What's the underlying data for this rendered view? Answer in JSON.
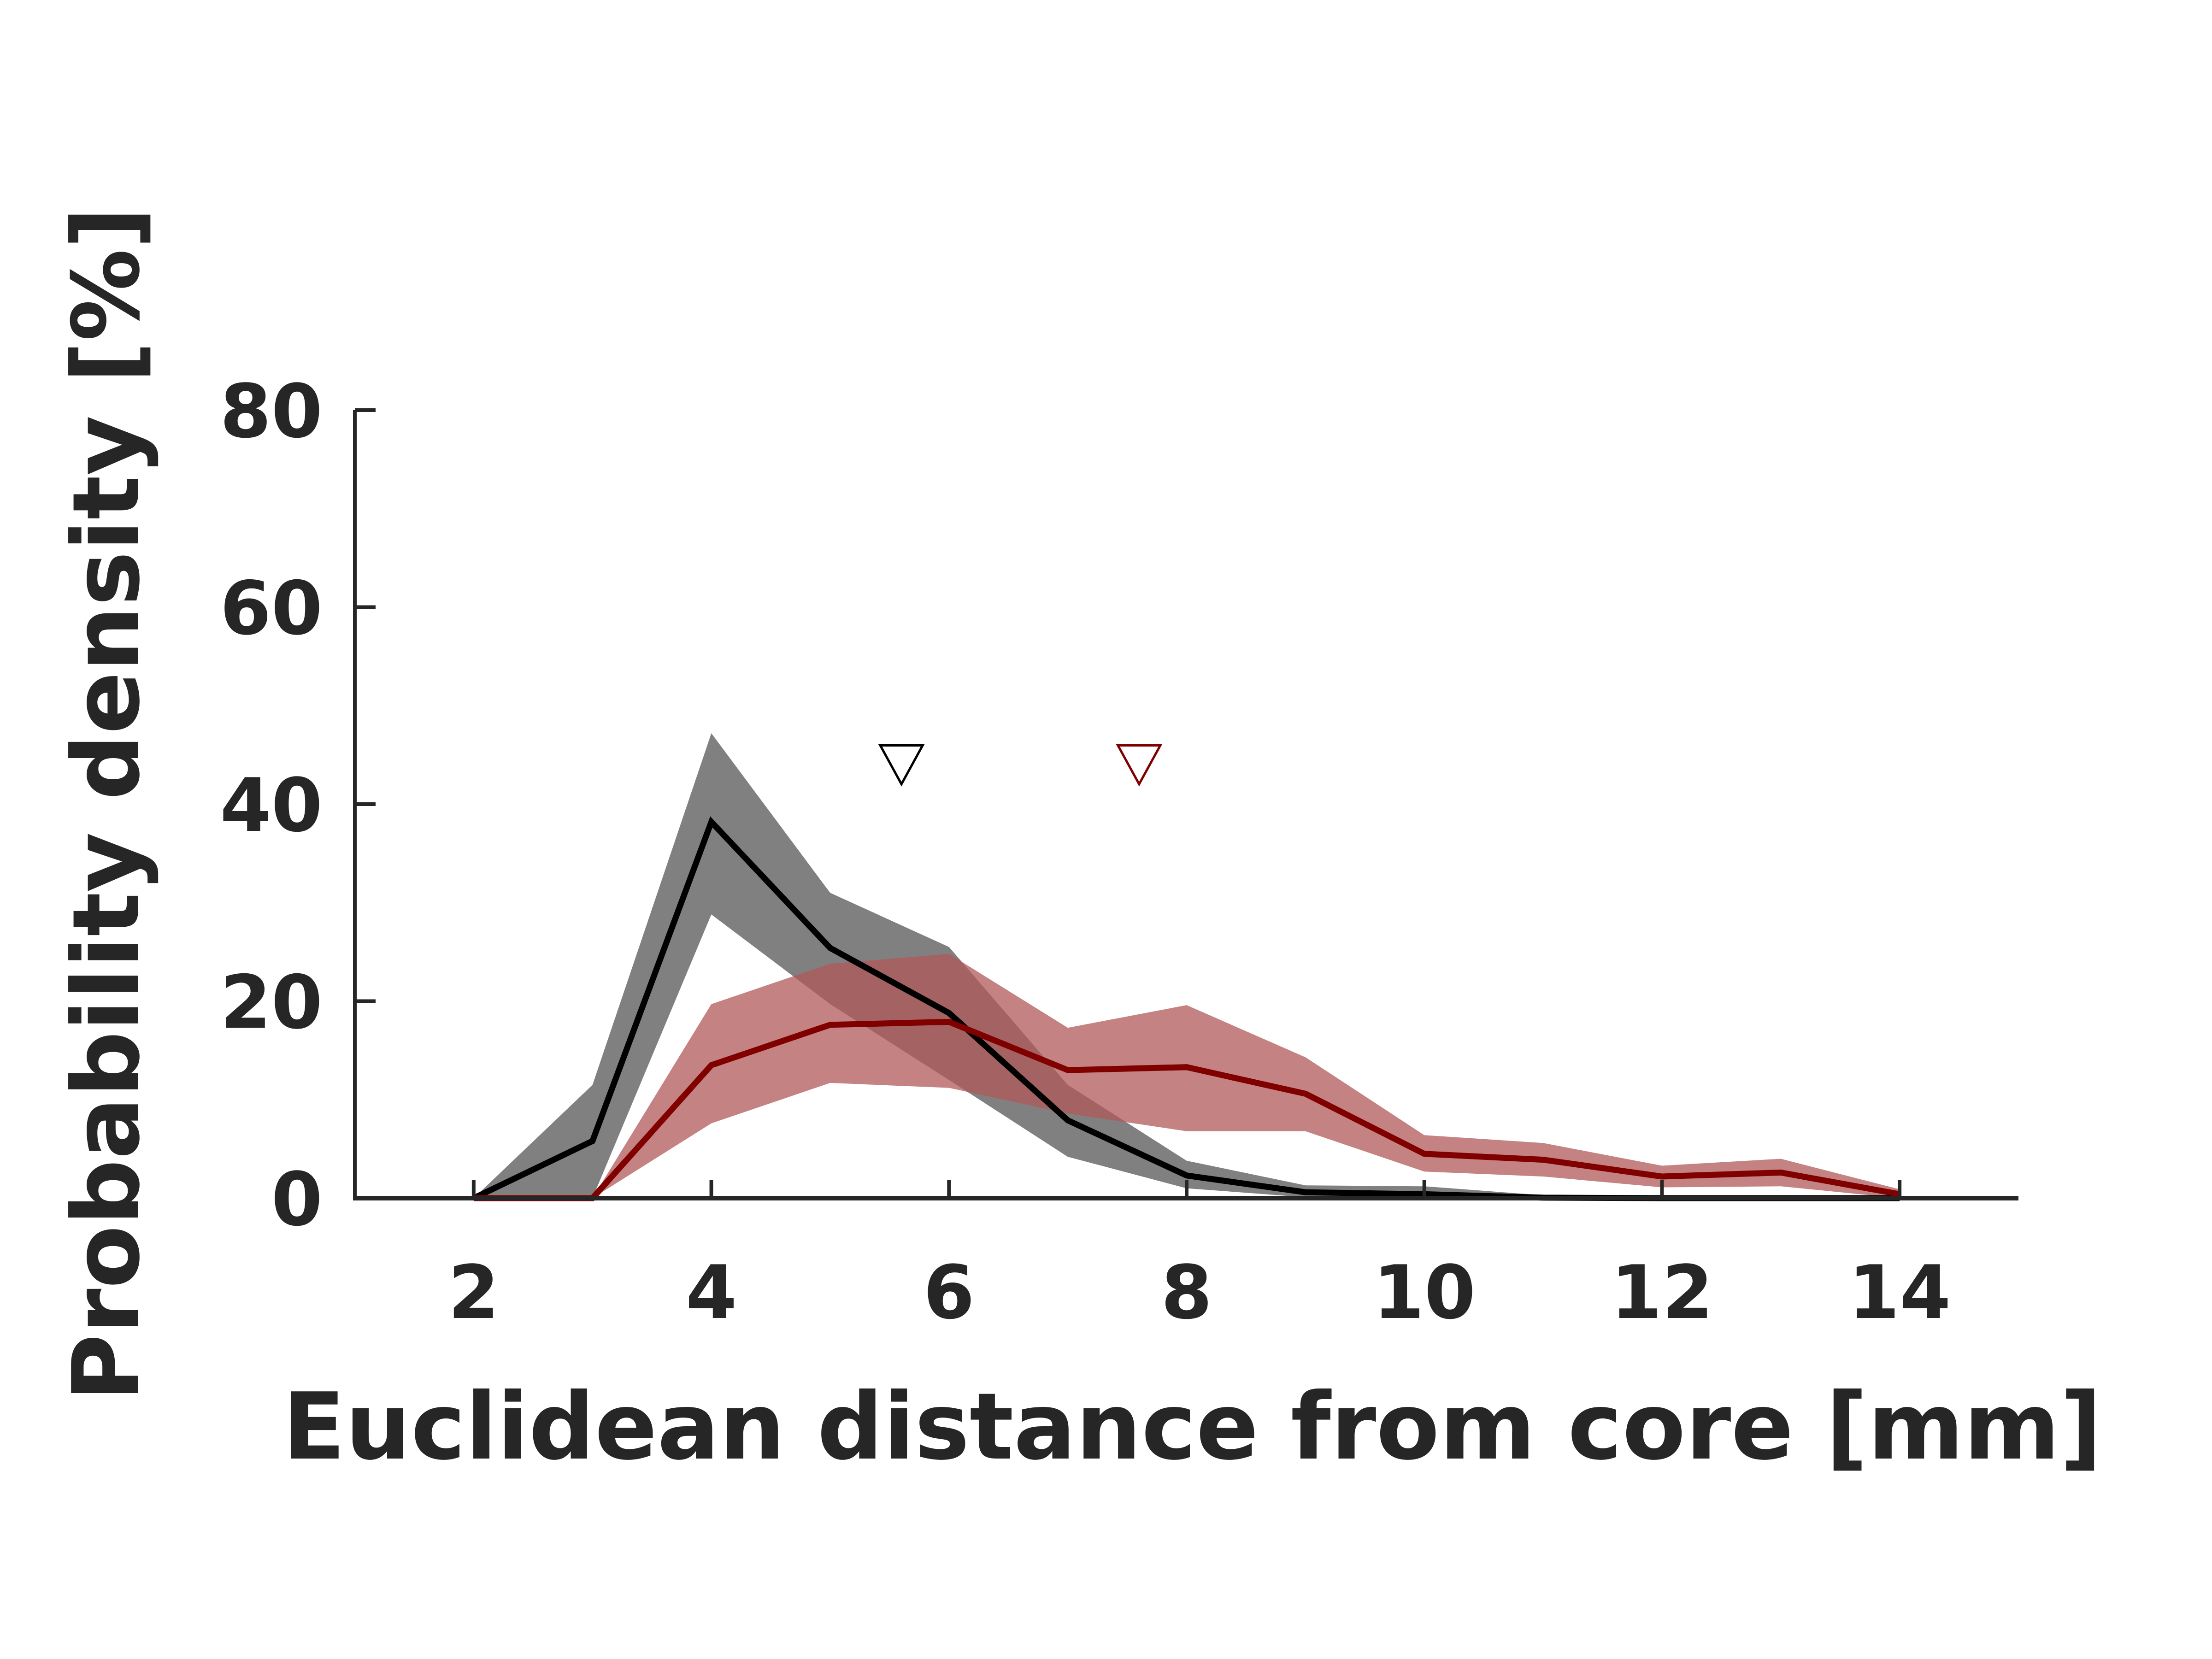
{
  "chart_data": {
    "type": "line",
    "title": "",
    "xlabel": "Euclidean distance from core [mm]",
    "ylabel": "Probability density [%]",
    "xlim": [
      1,
      15
    ],
    "ylim": [
      0,
      80
    ],
    "xticks": [
      2,
      4,
      6,
      8,
      10,
      12,
      14
    ],
    "yticks": [
      0,
      20,
      40,
      60,
      80
    ],
    "grid": false,
    "legend": "none",
    "series": [
      {
        "color": "#000000",
        "band_color": "#808080",
        "x": [
          2,
          3,
          4,
          5,
          6,
          7,
          8,
          9,
          10,
          11,
          12,
          13,
          14
        ],
        "values": [
          0,
          5.8,
          38.2,
          25.4,
          18.8,
          7.9,
          2.3,
          0.6,
          0.4,
          0.05,
          0,
          0,
          0
        ],
        "upper": [
          0,
          11.5,
          47.2,
          31.0,
          25.5,
          11.5,
          3.8,
          1.3,
          1.2,
          0.3,
          0,
          0,
          0
        ],
        "lower": [
          0,
          0,
          28.8,
          19.7,
          12.0,
          4.2,
          1.0,
          0.1,
          0,
          0,
          0,
          0,
          0
        ],
        "marker_x": 5.6
      },
      {
        "color": "#800000",
        "band_color": "#b25858",
        "x": [
          2,
          3,
          4,
          5,
          6,
          7,
          8,
          9,
          10,
          11,
          12,
          13,
          14
        ],
        "values": [
          0,
          0,
          13.5,
          17.6,
          17.9,
          13.0,
          13.3,
          10.6,
          4.5,
          3.9,
          2.2,
          2.6,
          0.4
        ],
        "upper": [
          0,
          0,
          19.7,
          23.8,
          24.8,
          17.3,
          19.6,
          14.3,
          6.4,
          5.6,
          3.3,
          4.0,
          0.9
        ],
        "lower": [
          0,
          0,
          7.6,
          11.7,
          11.2,
          8.6,
          6.8,
          6.8,
          2.7,
          2.2,
          1.1,
          1.2,
          0
        ],
        "marker_x": 7.6
      }
    ],
    "marker_y": 44
  },
  "colors": {
    "axis": "#262626",
    "text": "#262626",
    "background": "#ffffff"
  }
}
